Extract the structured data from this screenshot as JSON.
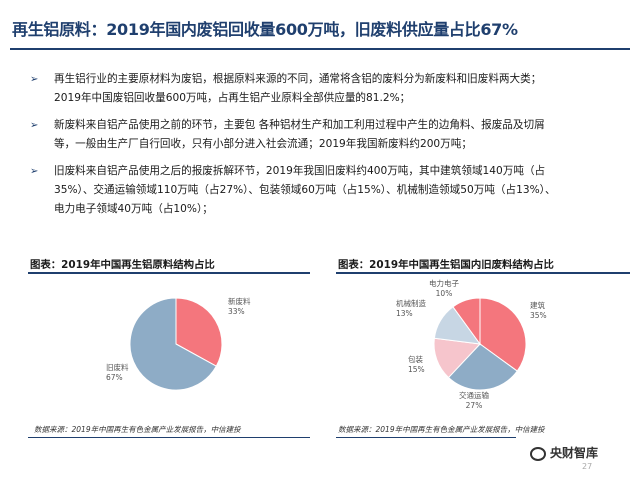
{
  "title": "再生铝原料：2019年国内废铝回收量600万吨，旧废料供应量占比67%",
  "bullets": [
    {
      "line1": "再生铝行业的主要原材料为废铝，根据原料来源的不同，通常将含铝的废料分为新废料和旧废料两大类；",
      "line2": "2019年中国废铝回收量600万吨，占再生铝产业原料全部供应量的81.2%；"
    },
    {
      "line1": "新废料来自铝产品使用之前的环节，主要包   各种铝材生产和加工利用过程中产生的边角料、报废品及切屑",
      "line2": "等，一般由生产厂自行回收，只有小部分进入社会流通；2019年我国新废料约200万吨；"
    },
    {
      "line1": "旧废料来自铝产品使用之后的报废拆解环节，2019年我国旧废料约400万吨，其中建筑领域140万吨（占",
      "line2": "35%）、交通运输领域110万吨（占27%）、包装领域60万吨（占15%）、机械制造领域50万吨（占13%）、",
      "line3": "电力电子领域40万吨（占10%）；"
    }
  ],
  "colors": {
    "navy": "#1f3f6e",
    "red": "#f4767d",
    "steel": "#8eacc6",
    "pink": "#f6c5cc",
    "light_blue": "#c7d6e4"
  },
  "chart_data": [
    {
      "type": "pie",
      "title": "图表：2019年中国再生铝原料结构占比",
      "slices": [
        {
          "name": "新废料",
          "value": 33,
          "label": "33%",
          "color": "#f4767d"
        },
        {
          "name": "旧废料",
          "value": 67,
          "label": "67%",
          "color": "#8eacc6"
        }
      ],
      "source": "数据来源：2019年中国再生有色金属产业发展报告，中信建投"
    },
    {
      "type": "pie",
      "title": "图表：2019年中国再生铝国内旧废料结构占比",
      "slices": [
        {
          "name": "建筑",
          "value": 35,
          "label": "35%",
          "color": "#f4767d"
        },
        {
          "name": "交通运输",
          "value": 27,
          "label": "27%",
          "color": "#8eacc6"
        },
        {
          "name": "包装",
          "value": 15,
          "label": "15%",
          "color": "#f6c5cc"
        },
        {
          "name": "机械制造",
          "value": 13,
          "label": "13%",
          "color": "#c7d6e4"
        },
        {
          "name": "电力电子",
          "value": 10,
          "label": "10%",
          "color": "#f4767d"
        }
      ],
      "source": "数据来源：2019年中国再生有色金属产业发展报告，中信建投"
    }
  ],
  "watermark": "央财智库",
  "page_number": "27"
}
